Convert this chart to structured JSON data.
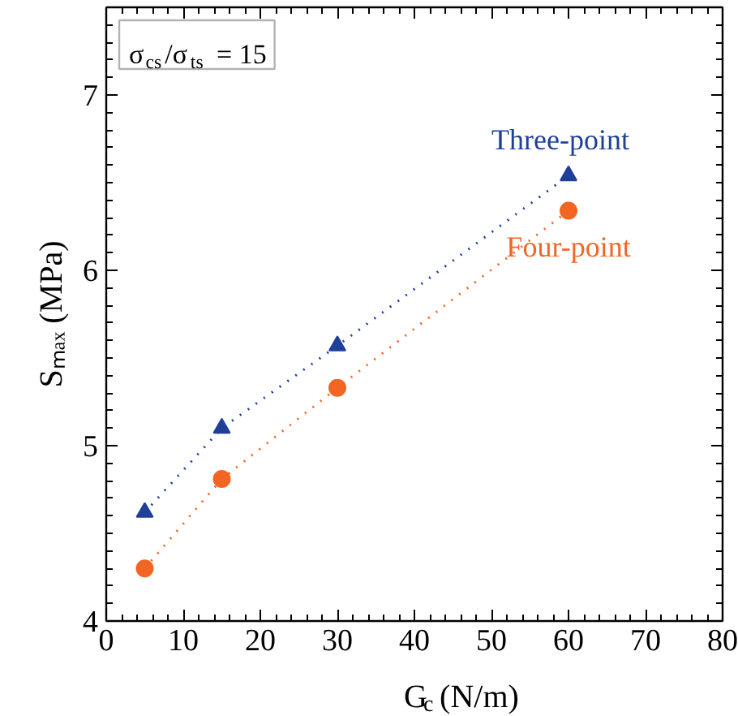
{
  "chart_data": {
    "type": "line",
    "xlabel": "G$_{c}$ (N/m)",
    "ylabel": "Sₘₐₓ (MPa)",
    "annotations": [
      "σ$_{cs}$/σ$_{ts}$ = 15"
    ],
    "x": [
      5,
      15,
      30,
      60
    ],
    "series": [
      {
        "name": "Three-point",
        "color": "#1f3f99",
        "marker": "triangle",
        "values": [
          4.62,
          5.1,
          5.57,
          6.54
        ]
      },
      {
        "name": "Four-point",
        "color": "#f26522",
        "marker": "circle",
        "values": [
          4.3,
          4.81,
          5.33,
          6.34
        ]
      }
    ],
    "line_style": "dotted",
    "xlim": [
      0,
      80
    ],
    "ylim": [
      4,
      7.5
    ],
    "xticks": [
      0,
      10,
      20,
      30,
      40,
      50,
      60,
      70,
      80
    ],
    "yticks": [
      4,
      5,
      6,
      7
    ],
    "grid": false,
    "legend": false
  }
}
